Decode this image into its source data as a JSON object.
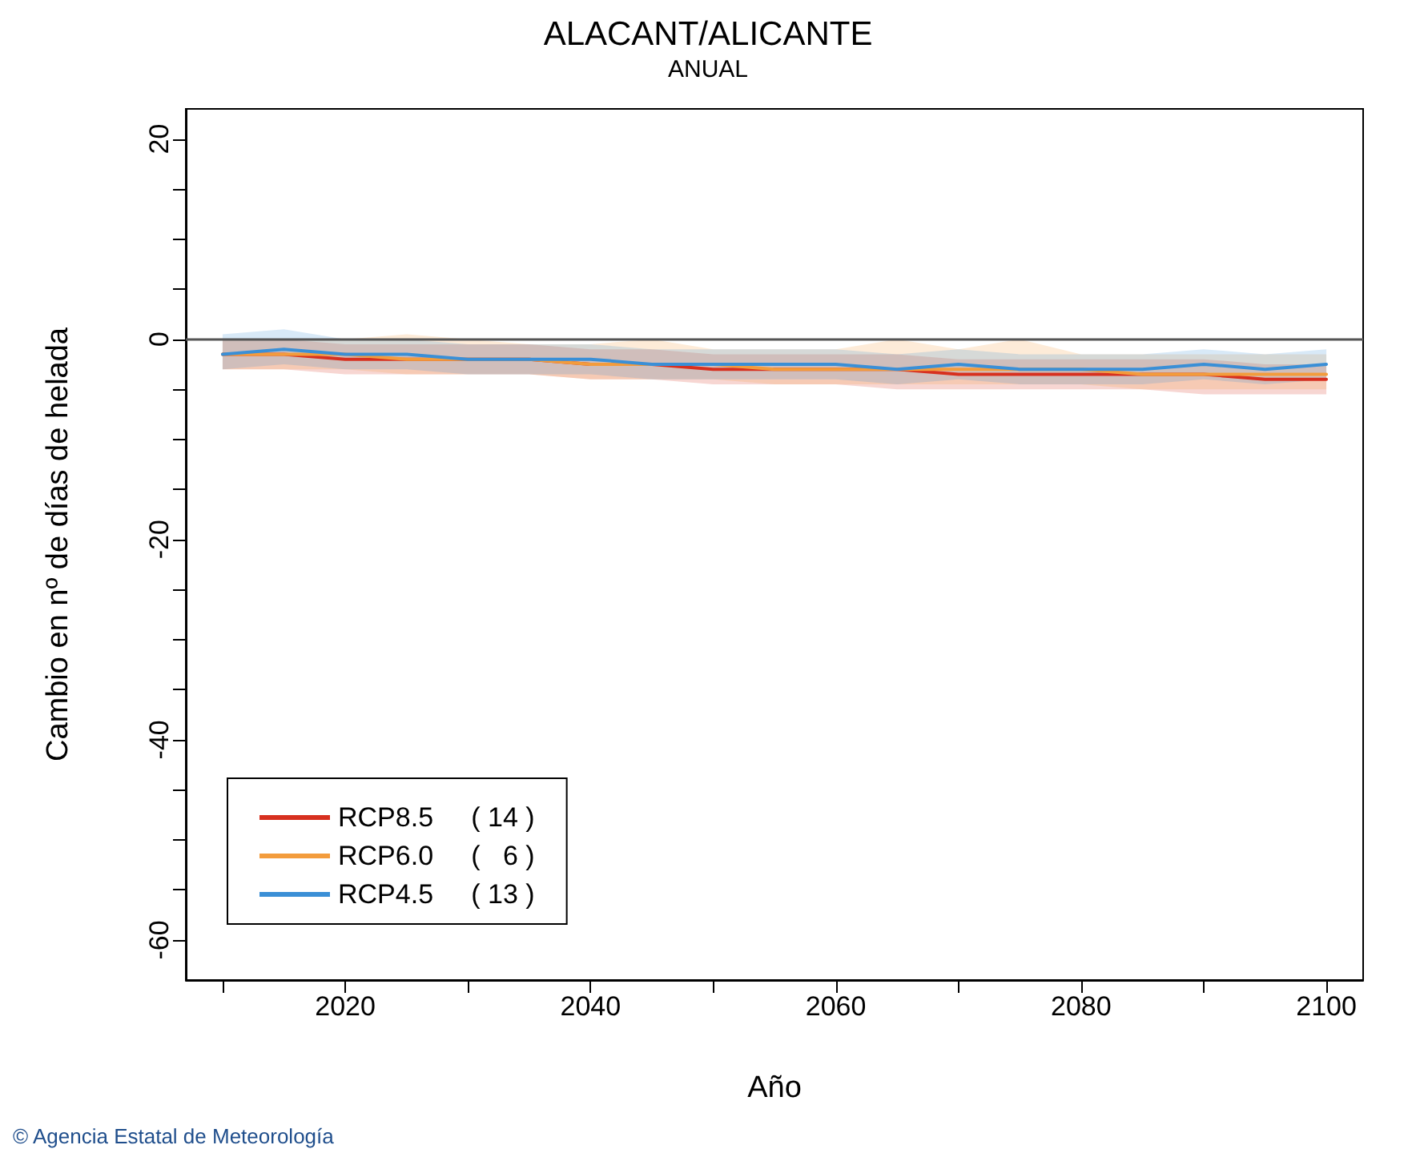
{
  "chart_data": {
    "type": "line",
    "title": "ALACANT/ALICANTE",
    "subtitle": "ANUAL",
    "xlabel": "Año",
    "ylabel": "Cambio en nº de días de helada",
    "x": [
      2010,
      2015,
      2020,
      2025,
      2030,
      2035,
      2040,
      2045,
      2050,
      2055,
      2060,
      2065,
      2070,
      2075,
      2080,
      2085,
      2090,
      2095,
      2100
    ],
    "series": [
      {
        "name": "RCP8.5     ( 14 )",
        "color": "#d7301f",
        "values": [
          -1.5,
          -1.5,
          -2,
          -2,
          -2,
          -2,
          -2.5,
          -2.5,
          -3,
          -3,
          -3,
          -3,
          -3.5,
          -3.5,
          -3.5,
          -3.5,
          -3.5,
          -4,
          -4
        ],
        "lower": [
          -3,
          -3,
          -3.5,
          -3.5,
          -3.5,
          -3.5,
          -4,
          -4,
          -4.5,
          -4.5,
          -4.5,
          -5,
          -5,
          -5,
          -5,
          -5,
          -5.5,
          -5.5,
          -5.5
        ],
        "upper": [
          0,
          0,
          -0.5,
          -0.5,
          -0.5,
          -0.5,
          -1,
          -1,
          -1.5,
          -1.5,
          -1.5,
          -1.5,
          -2,
          -2,
          -2,
          -2,
          -2,
          -2.5,
          -2.5
        ]
      },
      {
        "name": "RCP6.0     (   6 )",
        "color": "#f39c3c",
        "values": [
          -1.5,
          -1.5,
          -1.5,
          -2,
          -2,
          -2,
          -2.5,
          -2.5,
          -2.5,
          -3,
          -3,
          -3,
          -3,
          -3,
          -3,
          -3.5,
          -3.5,
          -3.5,
          -3.5
        ],
        "lower": [
          -3,
          -3,
          -3,
          -3.5,
          -3.5,
          -3.5,
          -4,
          -4,
          -4,
          -4.5,
          -4.5,
          -4.5,
          -4.5,
          -4.5,
          -4.5,
          -5,
          -5,
          -5,
          -5
        ],
        "upper": [
          0,
          0,
          0,
          0.5,
          0,
          -0.5,
          -0.5,
          0,
          -1,
          -1,
          -1,
          0,
          -1,
          0,
          -1.5,
          -1.5,
          -1.5,
          -1.5,
          -1.5
        ]
      },
      {
        "name": "RCP4.5     ( 13 )",
        "color": "#3a8fd6",
        "values": [
          -1.5,
          -1,
          -1.5,
          -1.5,
          -2,
          -2,
          -2,
          -2.5,
          -2.5,
          -2.5,
          -2.5,
          -3,
          -2.5,
          -3,
          -3,
          -3,
          -2.5,
          -3,
          -2.5
        ],
        "lower": [
          -3,
          -2.5,
          -3,
          -3,
          -3.5,
          -3.5,
          -3.5,
          -4,
          -4,
          -4,
          -4,
          -4.5,
          -4,
          -4.5,
          -4.5,
          -4.5,
          -4,
          -4.5,
          -4
        ],
        "upper": [
          0.5,
          1,
          0,
          0,
          -0.5,
          -0.5,
          -0.5,
          -1,
          -1,
          -1,
          -1,
          -1.5,
          -1,
          -1.5,
          -1.5,
          -1.5,
          -1,
          -1.5,
          -1
        ]
      }
    ],
    "xlim": [
      2007,
      2103
    ],
    "xticks": [
      {
        "value": 2010,
        "label": null
      },
      2020,
      {
        "value": 2030,
        "label": null
      },
      2040,
      {
        "value": 2050,
        "label": null
      },
      2060,
      {
        "value": 2070,
        "label": null
      },
      2080,
      {
        "value": 2090,
        "label": null
      },
      2100
    ],
    "ylim": [
      -64,
      23
    ],
    "yticks": [
      -60,
      {
        "value": -55,
        "label": null
      },
      {
        "value": -50,
        "label": null
      },
      {
        "value": -45,
        "label": null
      },
      -40,
      {
        "value": -35,
        "label": null
      },
      {
        "value": -30,
        "label": null
      },
      {
        "value": -25,
        "label": null
      },
      -20,
      {
        "value": -15,
        "label": null
      },
      {
        "value": -10,
        "label": null
      },
      {
        "value": -5,
        "label": null
      },
      0,
      {
        "value": 5,
        "label": null
      },
      {
        "value": 10,
        "label": null
      },
      {
        "value": 15,
        "label": null
      },
      20
    ],
    "ref_lines": [
      {
        "axis": "y",
        "value": 0,
        "label": null,
        "color": "#555555"
      }
    ],
    "annotations": [
      "© Agencia Estatal de Meteorología"
    ],
    "grid": false,
    "legend": "bottom left",
    "marker": "none",
    "line_style": "solid"
  }
}
